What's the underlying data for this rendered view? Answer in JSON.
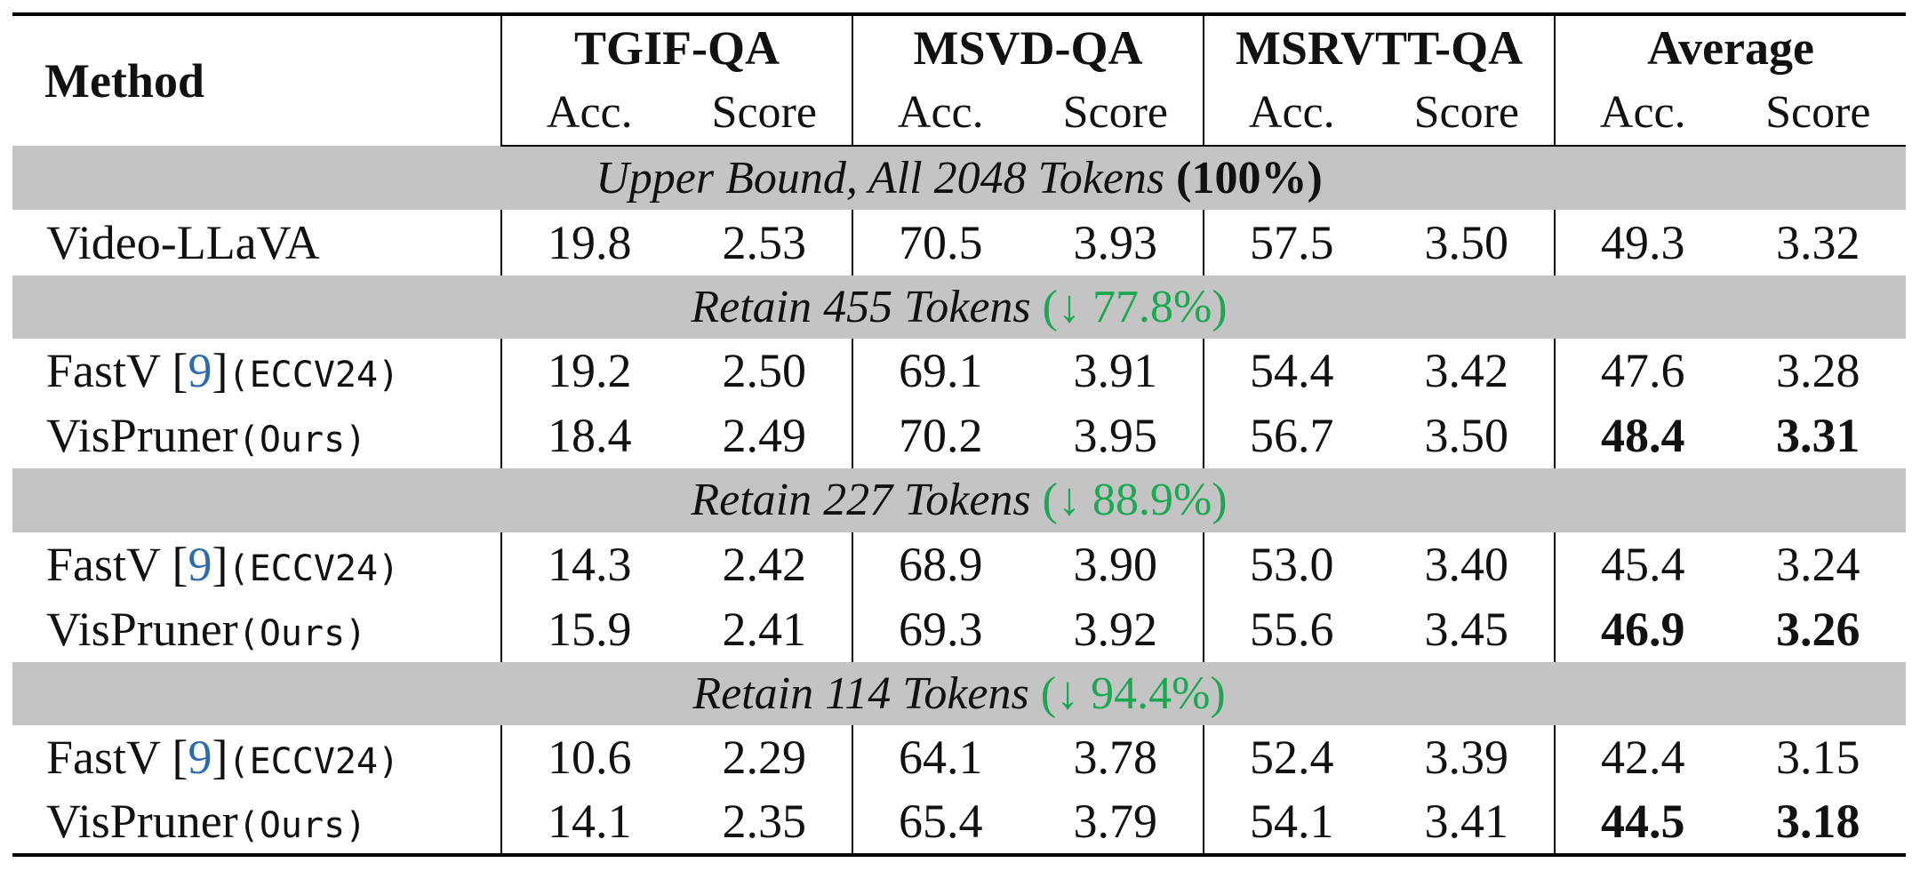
{
  "header": {
    "method": "Method",
    "groups": [
      "TGIF-QA",
      "MSVD-QA",
      "MSRVTT-QA",
      "Average"
    ],
    "sub_acc": "Acc.",
    "sub_score": "Score"
  },
  "sections": [
    {
      "label_italic": "Upper Bound, All 2048 Tokens",
      "label_pct": "(100%)",
      "rows": [
        {
          "method": "Video-LLaVA",
          "cite": "",
          "venue": "",
          "values": [
            "19.8",
            "2.53",
            "70.5",
            "3.93",
            "57.5",
            "3.50",
            "49.3",
            "3.32"
          ]
        }
      ]
    },
    {
      "label_italic": "Retain 455 Tokens",
      "label_pct": "(↓ 77.8%)",
      "rows": [
        {
          "method": "FastV [",
          "cite": "9",
          "close": "]",
          "venue": "(ECCV24)",
          "values": [
            "19.2",
            "2.50",
            "69.1",
            "3.91",
            "54.4",
            "3.42",
            "47.6",
            "3.28"
          ]
        },
        {
          "method": "VisPruner",
          "venue": "(Ours)",
          "values": [
            "18.4",
            "2.49",
            "70.2",
            "3.95",
            "56.7",
            "3.50",
            "48.4",
            "3.31"
          ]
        }
      ]
    },
    {
      "label_italic": "Retain 227 Tokens",
      "label_pct": "(↓ 88.9%)",
      "rows": [
        {
          "method": "FastV [",
          "cite": "9",
          "close": "]",
          "venue": "(ECCV24)",
          "values": [
            "14.3",
            "2.42",
            "68.9",
            "3.90",
            "53.0",
            "3.40",
            "45.4",
            "3.24"
          ]
        },
        {
          "method": "VisPruner",
          "venue": "(Ours)",
          "values": [
            "15.9",
            "2.41",
            "69.3",
            "3.92",
            "55.6",
            "3.45",
            "46.9",
            "3.26"
          ]
        }
      ]
    },
    {
      "label_italic": "Retain 114 Tokens",
      "label_pct": "(↓ 94.4%)",
      "rows": [
        {
          "method": "FastV [",
          "cite": "9",
          "close": "]",
          "venue": "(ECCV24)",
          "values": [
            "10.6",
            "2.29",
            "64.1",
            "3.78",
            "52.4",
            "3.39",
            "42.4",
            "3.15"
          ]
        },
        {
          "method": "VisPruner",
          "venue": "(Ours)",
          "values": [
            "14.1",
            "2.35",
            "65.4",
            "3.79",
            "54.1",
            "3.41",
            "44.5",
            "3.18"
          ]
        }
      ]
    }
  ],
  "colors": {
    "section_bg": "#c4c4c4",
    "reduction_green": "#1aa851",
    "citation_blue": "#2b6cb0"
  }
}
